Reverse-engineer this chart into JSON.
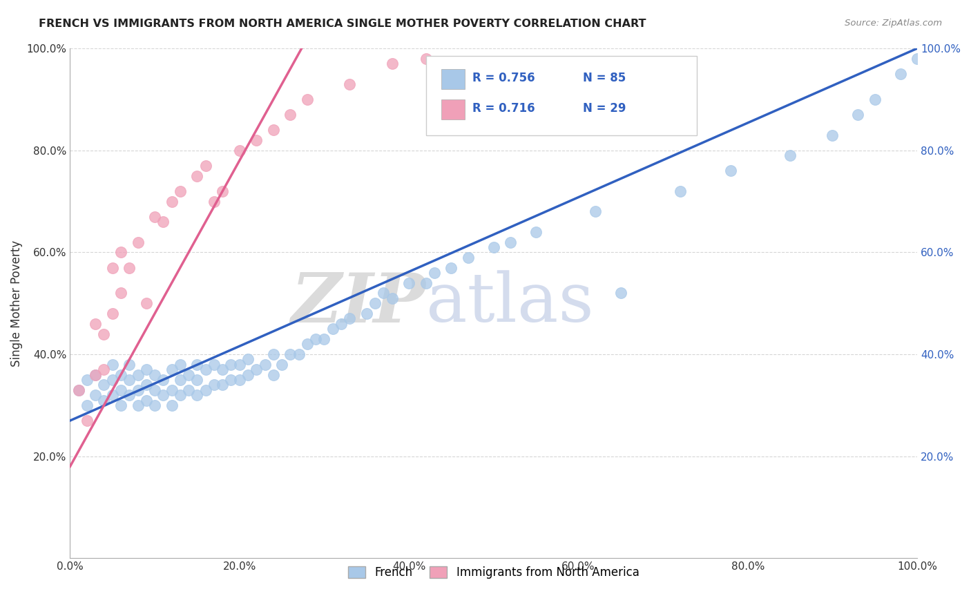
{
  "title": "FRENCH VS IMMIGRANTS FROM NORTH AMERICA SINGLE MOTHER POVERTY CORRELATION CHART",
  "source": "Source: ZipAtlas.com",
  "ylabel": "Single Mother Poverty",
  "xlim": [
    0.0,
    1.0
  ],
  "ylim": [
    0.0,
    1.0
  ],
  "xtick_labels": [
    "0.0%",
    "20.0%",
    "40.0%",
    "60.0%",
    "80.0%",
    "100.0%"
  ],
  "ytick_labels": [
    "20.0%",
    "40.0%",
    "60.0%",
    "80.0%",
    "100.0%"
  ],
  "color_blue": "#a8c8e8",
  "color_pink": "#f0a0b8",
  "line_blue": "#3060c0",
  "line_pink": "#e06090",
  "watermark_zip": "ZIP",
  "watermark_atlas": "atlas",
  "blue_line_x0": 0.0,
  "blue_line_y0": 0.27,
  "blue_line_x1": 1.0,
  "blue_line_y1": 1.0,
  "pink_line_x0": 0.0,
  "pink_line_y0": 0.18,
  "pink_line_x1": 0.28,
  "pink_line_y1": 1.02,
  "blue_x": [
    0.01,
    0.02,
    0.02,
    0.03,
    0.03,
    0.04,
    0.04,
    0.05,
    0.05,
    0.05,
    0.06,
    0.06,
    0.06,
    0.07,
    0.07,
    0.07,
    0.08,
    0.08,
    0.08,
    0.09,
    0.09,
    0.09,
    0.1,
    0.1,
    0.1,
    0.11,
    0.11,
    0.12,
    0.12,
    0.12,
    0.13,
    0.13,
    0.13,
    0.14,
    0.14,
    0.15,
    0.15,
    0.15,
    0.16,
    0.16,
    0.17,
    0.17,
    0.18,
    0.18,
    0.19,
    0.19,
    0.2,
    0.2,
    0.21,
    0.21,
    0.22,
    0.23,
    0.24,
    0.24,
    0.25,
    0.26,
    0.27,
    0.28,
    0.29,
    0.3,
    0.31,
    0.32,
    0.33,
    0.35,
    0.36,
    0.37,
    0.38,
    0.4,
    0.42,
    0.43,
    0.45,
    0.47,
    0.5,
    0.52,
    0.55,
    0.62,
    0.65,
    0.72,
    0.78,
    0.85,
    0.9,
    0.93,
    0.95,
    0.98,
    1.0
  ],
  "blue_y": [
    0.33,
    0.3,
    0.35,
    0.32,
    0.36,
    0.31,
    0.34,
    0.32,
    0.35,
    0.38,
    0.3,
    0.33,
    0.36,
    0.32,
    0.35,
    0.38,
    0.3,
    0.33,
    0.36,
    0.31,
    0.34,
    0.37,
    0.3,
    0.33,
    0.36,
    0.32,
    0.35,
    0.3,
    0.33,
    0.37,
    0.32,
    0.35,
    0.38,
    0.33,
    0.36,
    0.32,
    0.35,
    0.38,
    0.33,
    0.37,
    0.34,
    0.38,
    0.34,
    0.37,
    0.35,
    0.38,
    0.35,
    0.38,
    0.36,
    0.39,
    0.37,
    0.38,
    0.36,
    0.4,
    0.38,
    0.4,
    0.4,
    0.42,
    0.43,
    0.43,
    0.45,
    0.46,
    0.47,
    0.48,
    0.5,
    0.52,
    0.51,
    0.54,
    0.54,
    0.56,
    0.57,
    0.59,
    0.61,
    0.62,
    0.64,
    0.68,
    0.52,
    0.72,
    0.76,
    0.79,
    0.83,
    0.87,
    0.9,
    0.95,
    0.98
  ],
  "pink_x": [
    0.01,
    0.02,
    0.03,
    0.03,
    0.04,
    0.04,
    0.05,
    0.05,
    0.06,
    0.06,
    0.07,
    0.08,
    0.09,
    0.1,
    0.11,
    0.12,
    0.13,
    0.15,
    0.16,
    0.17,
    0.18,
    0.2,
    0.22,
    0.24,
    0.26,
    0.28,
    0.33,
    0.38,
    0.42
  ],
  "pink_y": [
    0.33,
    0.27,
    0.36,
    0.46,
    0.37,
    0.44,
    0.48,
    0.57,
    0.52,
    0.6,
    0.57,
    0.62,
    0.5,
    0.67,
    0.66,
    0.7,
    0.72,
    0.75,
    0.77,
    0.7,
    0.72,
    0.8,
    0.82,
    0.84,
    0.87,
    0.9,
    0.93,
    0.97,
    0.98
  ]
}
